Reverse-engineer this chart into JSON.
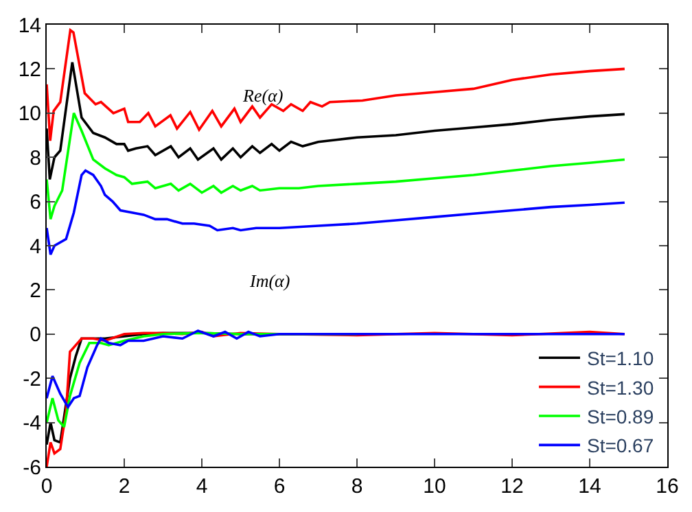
{
  "chart_data": {
    "type": "line",
    "xlim": [
      0,
      16
    ],
    "xticks": [
      0,
      2,
      4,
      6,
      8,
      10,
      12,
      14,
      16
    ],
    "ylim": [
      -6,
      14
    ],
    "yticks": [
      14,
      12,
      10,
      8,
      6,
      4,
      2,
      0,
      -2,
      -4,
      -6
    ],
    "legend": "bottom right",
    "marker": "none",
    "line_style": "solid",
    "annotations": [
      "Re(α)",
      "Im(α)"
    ],
    "series": [
      {
        "name": "St=1.10",
        "color": "#000000",
        "x": [
          0,
          0.08,
          0.2,
          0.35,
          0.66,
          0.9,
          1.2,
          1.5,
          1.8,
          2.0,
          2.1,
          2.3,
          2.6,
          2.8,
          3.2,
          3.4,
          3.7,
          3.9,
          4.3,
          4.5,
          4.8,
          5.0,
          5.3,
          5.5,
          5.8,
          6.0,
          6.3,
          6.6,
          7,
          7.5,
          8,
          9,
          10,
          11,
          12,
          13,
          14,
          14.9
        ],
        "values": [
          9.3,
          7.0,
          8.0,
          8.3,
          12.3,
          9.8,
          9.1,
          8.9,
          8.6,
          8.6,
          8.3,
          8.4,
          8.5,
          8.1,
          8.5,
          8.0,
          8.4,
          7.9,
          8.4,
          7.9,
          8.4,
          8.0,
          8.5,
          8.2,
          8.6,
          8.3,
          8.7,
          8.5,
          8.7,
          8.8,
          8.9,
          9.0,
          9.2,
          9.35,
          9.5,
          9.7,
          9.85,
          9.95
        ]
      },
      {
        "name": "St=1.30",
        "color": "#ff0000",
        "x": [
          0,
          0.09,
          0.18,
          0.35,
          0.61,
          0.69,
          0.98,
          1.26,
          1.4,
          1.72,
          2.0,
          2.1,
          2.4,
          2.62,
          2.8,
          3.19,
          3.36,
          3.7,
          3.93,
          4.27,
          4.5,
          4.84,
          5.0,
          5.3,
          5.5,
          5.8,
          6.1,
          6.3,
          6.6,
          6.8,
          7.1,
          7.3,
          8.14,
          9,
          10,
          11,
          12,
          13,
          14,
          14.9
        ],
        "values": [
          11.3,
          8.75,
          10.1,
          10.5,
          13.75,
          13.65,
          10.9,
          10.4,
          10.5,
          10.0,
          10.2,
          9.6,
          9.6,
          10.0,
          9.4,
          9.9,
          9.3,
          10.05,
          9.25,
          10.1,
          9.4,
          10.2,
          9.6,
          10.3,
          9.8,
          10.4,
          10.1,
          10.4,
          10.1,
          10.5,
          10.3,
          10.5,
          10.57,
          10.8,
          10.95,
          11.1,
          11.5,
          11.75,
          11.9,
          12.0
        ]
      },
      {
        "name": "St=0.89",
        "color": "#00ff00",
        "x": [
          0,
          0.1,
          0.2,
          0.4,
          0.7,
          0.9,
          1.2,
          1.5,
          1.8,
          2.0,
          2.2,
          2.6,
          2.8,
          3.2,
          3.4,
          3.7,
          4.0,
          4.3,
          4.5,
          4.8,
          5.0,
          5.3,
          5.5,
          6,
          6.5,
          7,
          8,
          9,
          10,
          11,
          12,
          13,
          14,
          14.9
        ],
        "values": [
          7.0,
          5.2,
          5.8,
          6.5,
          10.0,
          9.2,
          7.9,
          7.5,
          7.2,
          7.1,
          6.8,
          6.9,
          6.6,
          6.8,
          6.5,
          6.8,
          6.4,
          6.7,
          6.4,
          6.7,
          6.5,
          6.7,
          6.5,
          6.6,
          6.6,
          6.7,
          6.8,
          6.9,
          7.05,
          7.2,
          7.4,
          7.6,
          7.75,
          7.9
        ]
      },
      {
        "name": "St=0.67",
        "color": "#0000ff",
        "x": [
          0,
          0.1,
          0.2,
          0.5,
          0.7,
          0.9,
          1.0,
          1.2,
          1.4,
          1.5,
          1.7,
          1.9,
          2.2,
          2.5,
          2.8,
          3.1,
          3.5,
          3.8,
          4.2,
          4.4,
          4.8,
          5.0,
          5.4,
          6,
          7,
          8,
          9,
          10,
          11,
          12,
          13,
          14,
          14.9
        ],
        "values": [
          4.8,
          3.6,
          4.0,
          4.3,
          5.5,
          7.2,
          7.4,
          7.2,
          6.7,
          6.3,
          6.0,
          5.6,
          5.5,
          5.4,
          5.2,
          5.2,
          5.0,
          5.0,
          4.9,
          4.7,
          4.8,
          4.7,
          4.8,
          4.8,
          4.9,
          5.0,
          5.15,
          5.3,
          5.45,
          5.6,
          5.75,
          5.85,
          5.95
        ]
      },
      {
        "color": "#000000",
        "x": [
          0,
          0.1,
          0.2,
          0.35,
          0.6,
          0.75,
          0.9,
          1.2,
          1.5,
          2,
          2.5,
          3,
          4,
          5,
          6,
          8
        ],
        "values": [
          -5.0,
          -4.0,
          -4.8,
          -4.9,
          -2.0,
          -1.0,
          -0.2,
          -0.2,
          -0.2,
          -0.1,
          0,
          0.05,
          0.05,
          0,
          0,
          0
        ]
      },
      {
        "color": "#ff0000",
        "x": [
          0,
          0.1,
          0.2,
          0.35,
          0.5,
          0.6,
          0.75,
          0.9,
          1.2,
          1.5,
          2,
          2.5,
          3,
          3.5,
          4,
          4.3,
          5,
          6,
          8,
          10,
          12,
          14,
          14.9
        ],
        "values": [
          -6.0,
          -4.9,
          -5.4,
          -5.2,
          -3.5,
          -0.8,
          -0.5,
          -0.2,
          -0.2,
          -0.3,
          0,
          0.05,
          0.05,
          0,
          0.1,
          -0.1,
          0.05,
          0,
          -0.05,
          0.05,
          -0.05,
          0.1,
          0
        ]
      },
      {
        "color": "#00ff00",
        "x": [
          0,
          0.15,
          0.3,
          0.45,
          0.6,
          0.85,
          1.1,
          1.4,
          1.6,
          2,
          2.5,
          3,
          4,
          5,
          6,
          8
        ],
        "values": [
          -4.0,
          -2.9,
          -3.9,
          -4.2,
          -2.8,
          -1.3,
          -0.4,
          -0.4,
          -0.5,
          -0.3,
          -0.1,
          0,
          0.05,
          0,
          0,
          0
        ]
      },
      {
        "color": "#0000ff",
        "x": [
          0,
          0.15,
          0.35,
          0.55,
          0.7,
          0.85,
          1.05,
          1.3,
          1.4,
          1.6,
          1.9,
          2.1,
          2.5,
          3,
          3.5,
          3.9,
          4.3,
          4.6,
          4.9,
          5.2,
          5.5,
          6,
          7,
          8,
          10,
          12,
          14,
          14.9
        ],
        "values": [
          -2.9,
          -1.9,
          -2.7,
          -3.3,
          -2.9,
          -2.8,
          -1.5,
          -0.5,
          -0.2,
          -0.4,
          -0.5,
          -0.3,
          -0.3,
          -0.1,
          -0.2,
          0.15,
          -0.1,
          0.1,
          -0.2,
          0.1,
          -0.1,
          0,
          0,
          0,
          0,
          0,
          0,
          0
        ]
      }
    ]
  }
}
